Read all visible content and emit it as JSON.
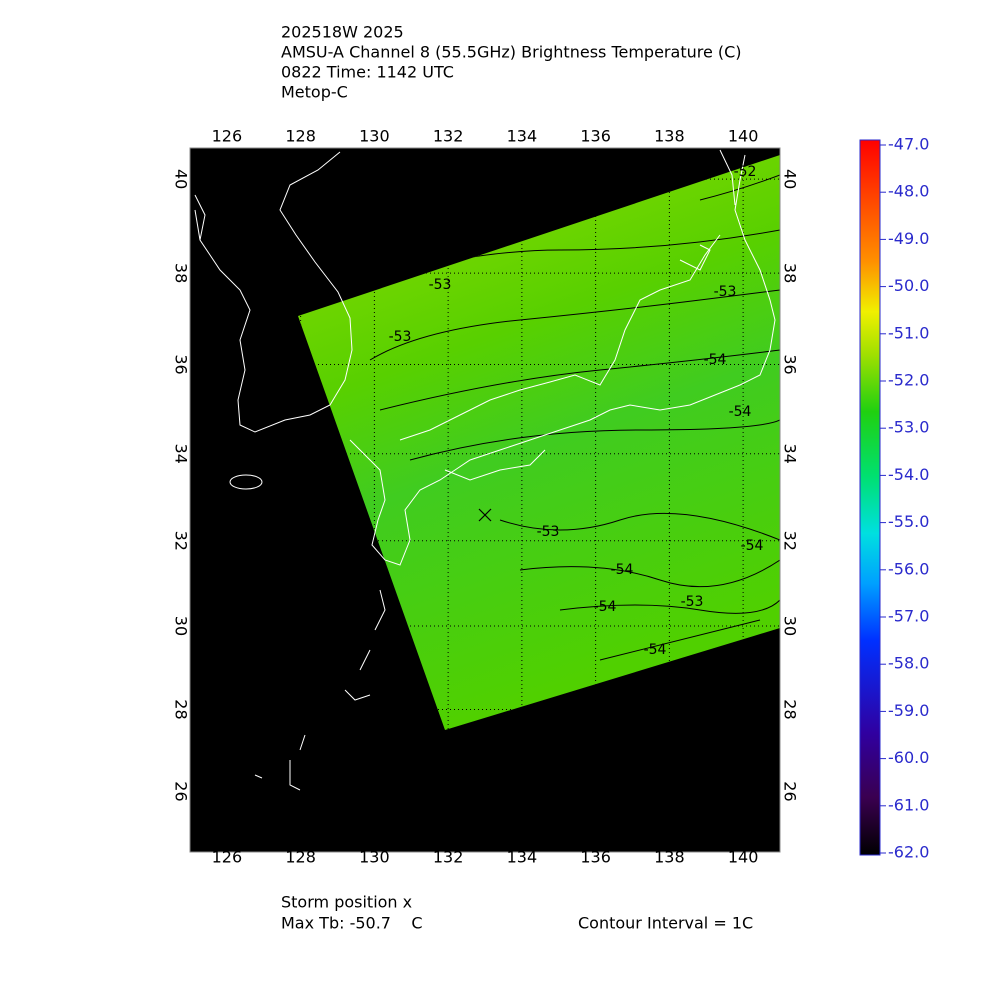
{
  "title_lines": [
    "202518W 2025",
    "AMSU-A Channel 8 (55.5GHz) Brightness Temperature (C)",
    "0822 Time: 1142 UTC",
    "Metop-C"
  ],
  "map": {
    "xlim": [
      125,
      141
    ],
    "ylim": [
      24.5,
      40.65
    ],
    "xticks": [
      126,
      128,
      130,
      132,
      134,
      136,
      138,
      140
    ],
    "yticks": [
      26,
      28,
      30,
      32,
      34,
      36,
      38,
      40
    ],
    "contour_labels": [
      -52,
      -53,
      -53,
      -53,
      -54,
      -54,
      -53,
      -54,
      -54,
      -54,
      -53,
      -54
    ]
  },
  "colorbar": {
    "lim": [
      -62,
      -47
    ],
    "ticks": [
      {
        "value": -62,
        "label": "-62.0"
      },
      {
        "value": -61,
        "label": "-61.0"
      },
      {
        "value": -60,
        "label": "-60.0"
      },
      {
        "value": -59,
        "label": "-59.0"
      },
      {
        "value": -58,
        "label": "-58.0"
      },
      {
        "value": -57,
        "label": "-57.0"
      },
      {
        "value": -56,
        "label": "-56.0"
      },
      {
        "value": -55,
        "label": "-55.0"
      },
      {
        "value": -54,
        "label": "-54.0"
      },
      {
        "value": -53,
        "label": "-53.0"
      },
      {
        "value": -52,
        "label": "-52.0"
      },
      {
        "value": -51,
        "label": "-51.0"
      },
      {
        "value": -50,
        "label": "-50.0"
      },
      {
        "value": -49,
        "label": "-49.0"
      },
      {
        "value": -48,
        "label": "-48.0"
      },
      {
        "value": -47,
        "label": "-47.0"
      }
    ]
  },
  "footer": {
    "storm_position": "Storm position x",
    "max_tb": "Max Tb: -50.7    C",
    "contour_interval": "Contour Interval = 1C"
  }
}
